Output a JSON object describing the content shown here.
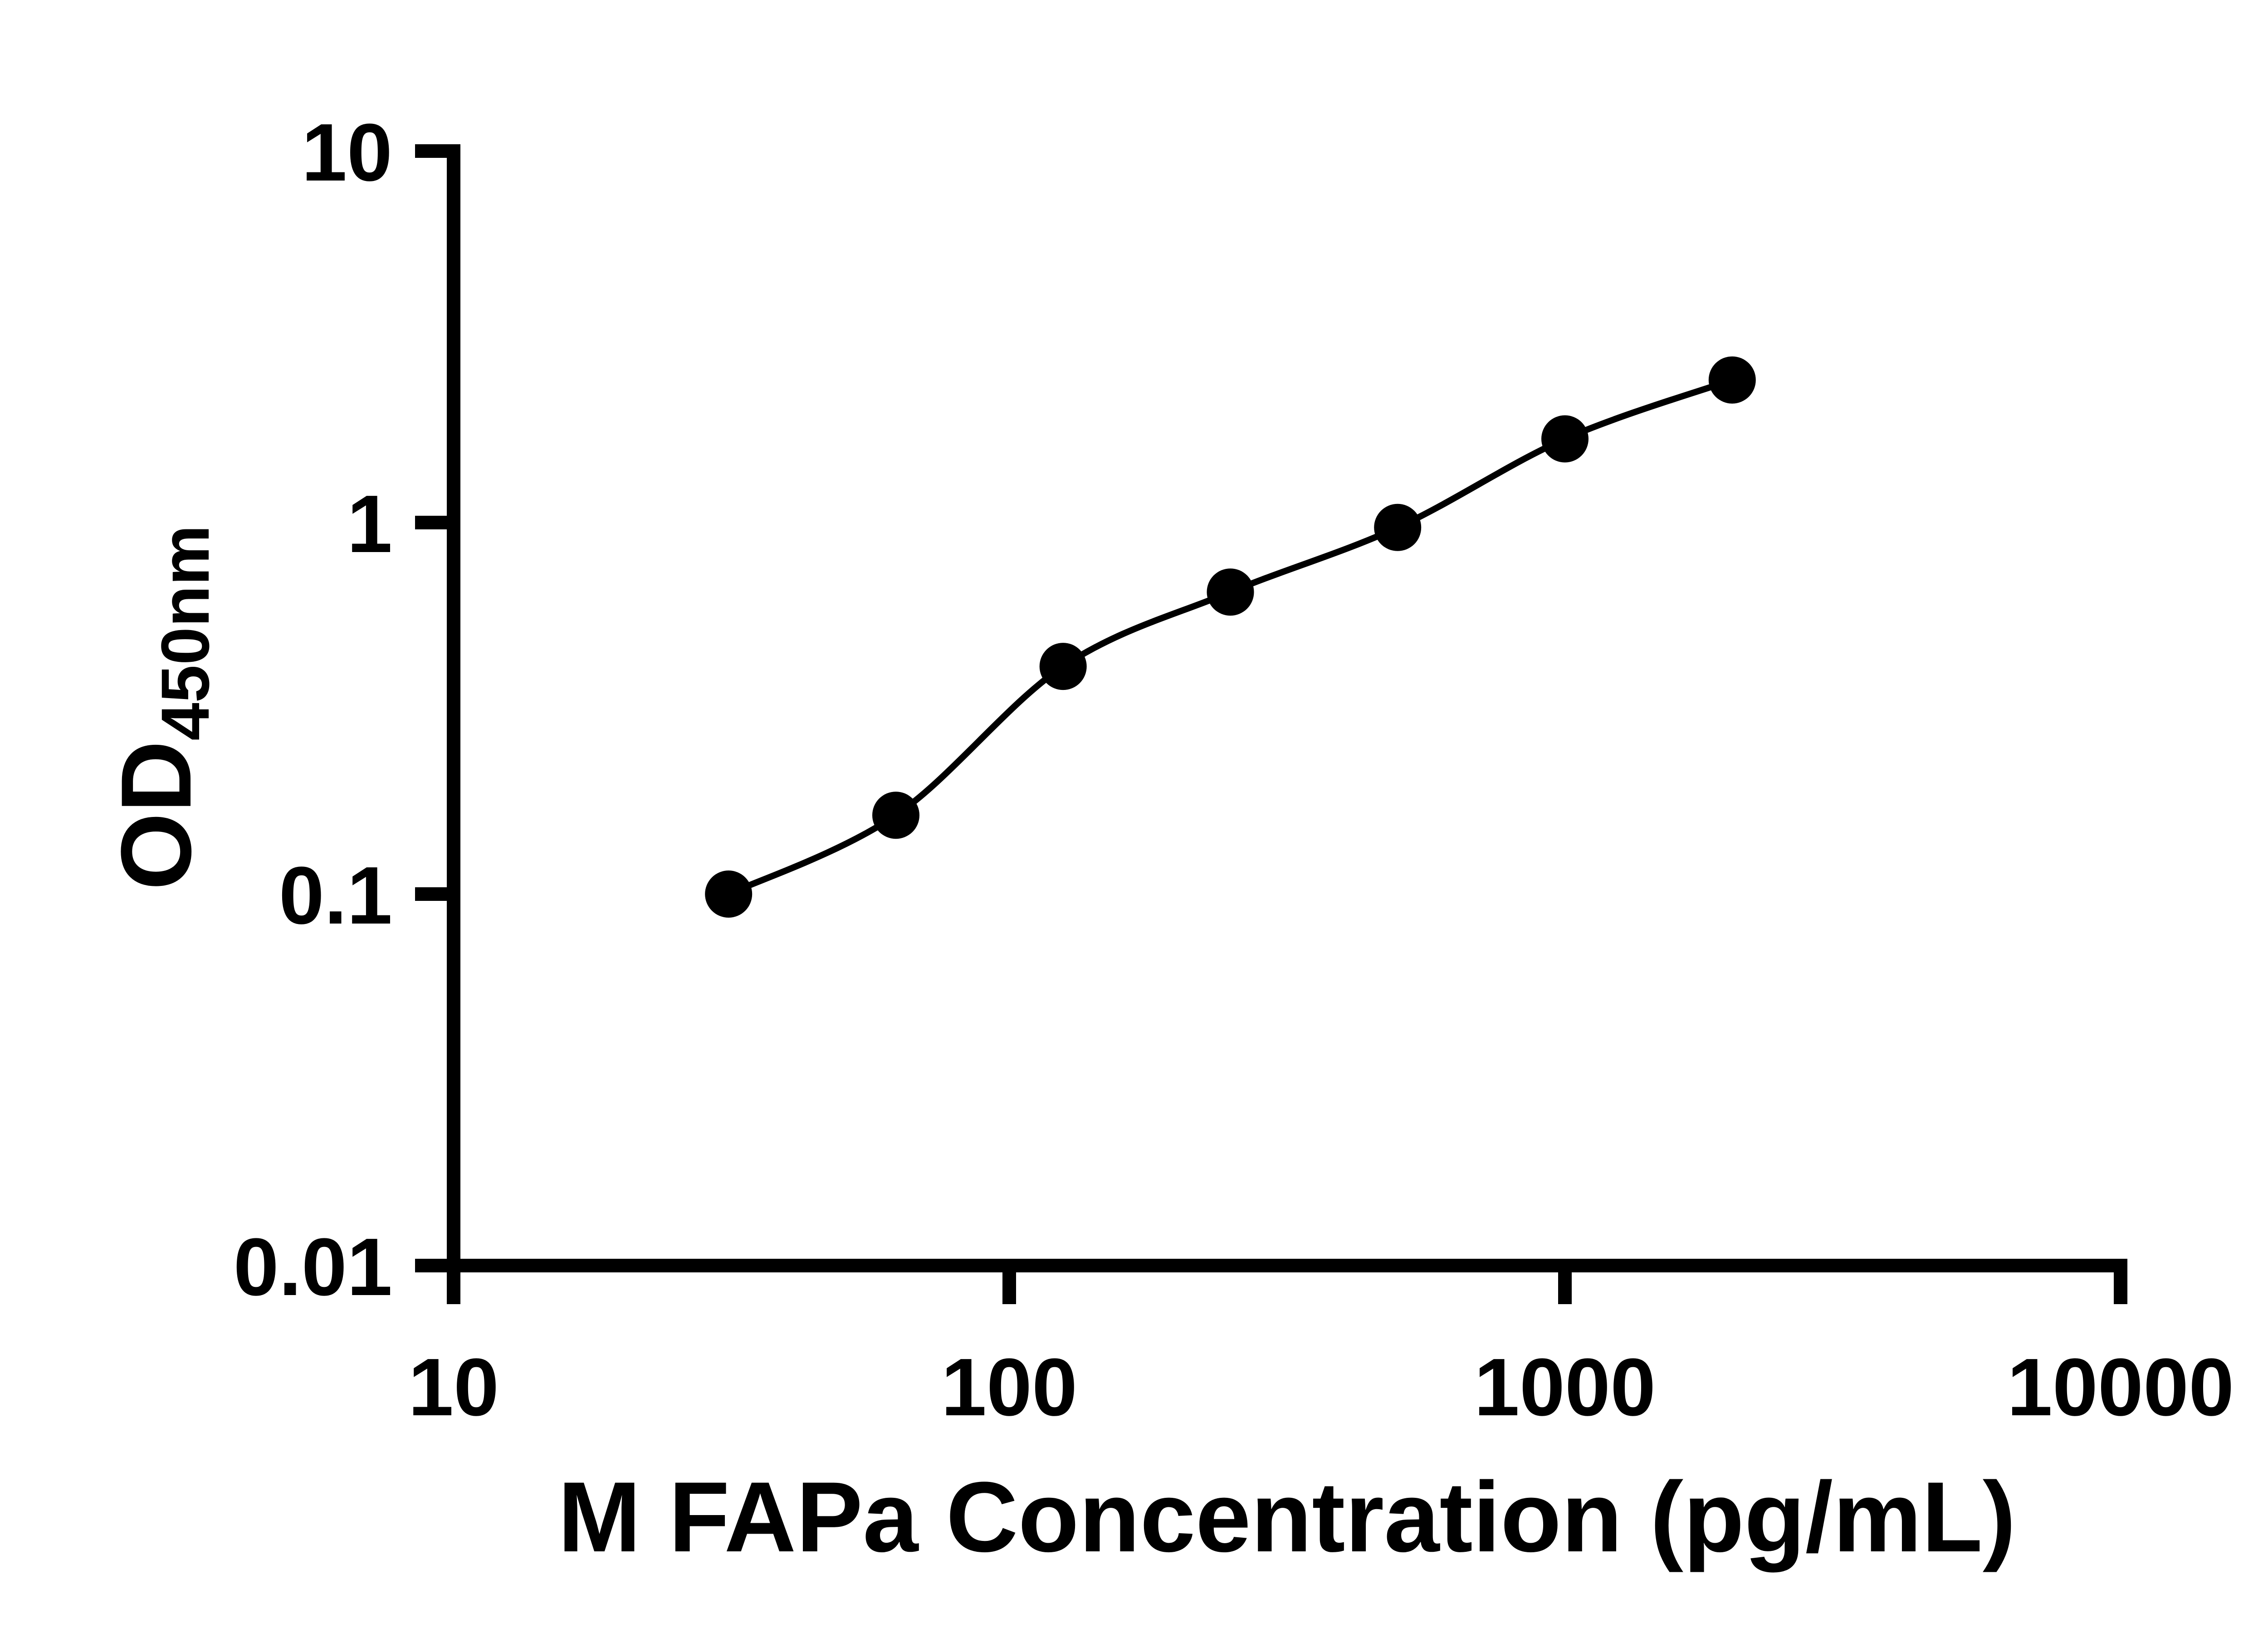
{
  "figure": {
    "background_color": "#ffffff"
  },
  "chart_data": {
    "type": "scatter",
    "title": "",
    "xlabel": "M FAPa Concentration (pg/mL)",
    "ylabel_main": "OD",
    "ylabel_sub": "450nm",
    "x_scale": "log10",
    "y_scale": "log10",
    "xlim": [
      10,
      10000
    ],
    "ylim": [
      0.01,
      10
    ],
    "grid": false,
    "legend": null,
    "fit_line": true,
    "marker": "circle",
    "marker_color": "#000000",
    "line_color": "#000000",
    "axis_color": "#000000",
    "x_ticks": [
      {
        "value": 10,
        "label": "10"
      },
      {
        "value": 100,
        "label": "100"
      },
      {
        "value": 1000,
        "label": "1000"
      },
      {
        "value": 10000,
        "label": "10000"
      }
    ],
    "y_ticks": [
      {
        "value": 10,
        "label": "10"
      },
      {
        "value": 1,
        "label": "1"
      },
      {
        "value": 0.1,
        "label": "0.1"
      },
      {
        "value": 0.01,
        "label": "0.01"
      }
    ],
    "points": [
      {
        "x": 31.25,
        "y": 0.1
      },
      {
        "x": 62.5,
        "y": 0.163
      },
      {
        "x": 125,
        "y": 0.41
      },
      {
        "x": 250,
        "y": 0.65
      },
      {
        "x": 500,
        "y": 0.97
      },
      {
        "x": 1000,
        "y": 1.68
      },
      {
        "x": 2000,
        "y": 2.42
      }
    ]
  }
}
